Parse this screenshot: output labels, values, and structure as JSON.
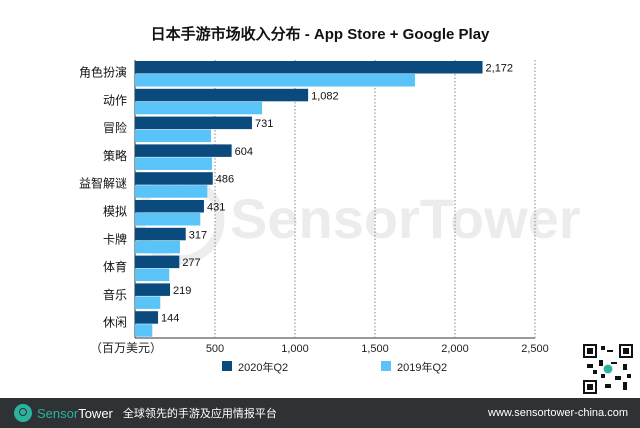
{
  "chart_data": {
    "type": "bar",
    "orientation": "horizontal",
    "title": "日本手游市场收入分布 - App Store + Google Play",
    "xlabel": "（百万美元）",
    "categories": [
      "角色扮演",
      "动作",
      "冒险",
      "策略",
      "益智解谜",
      "模拟",
      "卡牌",
      "体育",
      "音乐",
      "休闲"
    ],
    "series": [
      {
        "name": "2020年Q2",
        "color": "#0b4a7d",
        "values": [
          2172,
          1082,
          731,
          604,
          486,
          431,
          317,
          277,
          219,
          144
        ],
        "data_labels": [
          "2,172",
          "1,082",
          "731",
          "604",
          "486",
          "431",
          "317",
          "277",
          "219",
          "144"
        ]
      },
      {
        "name": "2019年Q2",
        "color": "#5ac3f8",
        "values": [
          1750,
          794,
          475,
          481,
          452,
          408,
          281,
          214,
          158,
          108
        ]
      }
    ],
    "xlim": [
      0,
      2500
    ],
    "xticks": [
      500,
      1000,
      1500,
      2000,
      2500
    ],
    "xtick_labels": [
      "500",
      "1,000",
      "1,500",
      "2,000",
      "2,500"
    ],
    "grid": "vertical dotted",
    "legend": "bottom"
  },
  "watermark": "SensorTower",
  "footer": {
    "brand_a": "Sensor",
    "brand_b": "Tower",
    "tagline": "全球领先的手游及应用情报平台",
    "url": "www.sensortower-china.com"
  }
}
